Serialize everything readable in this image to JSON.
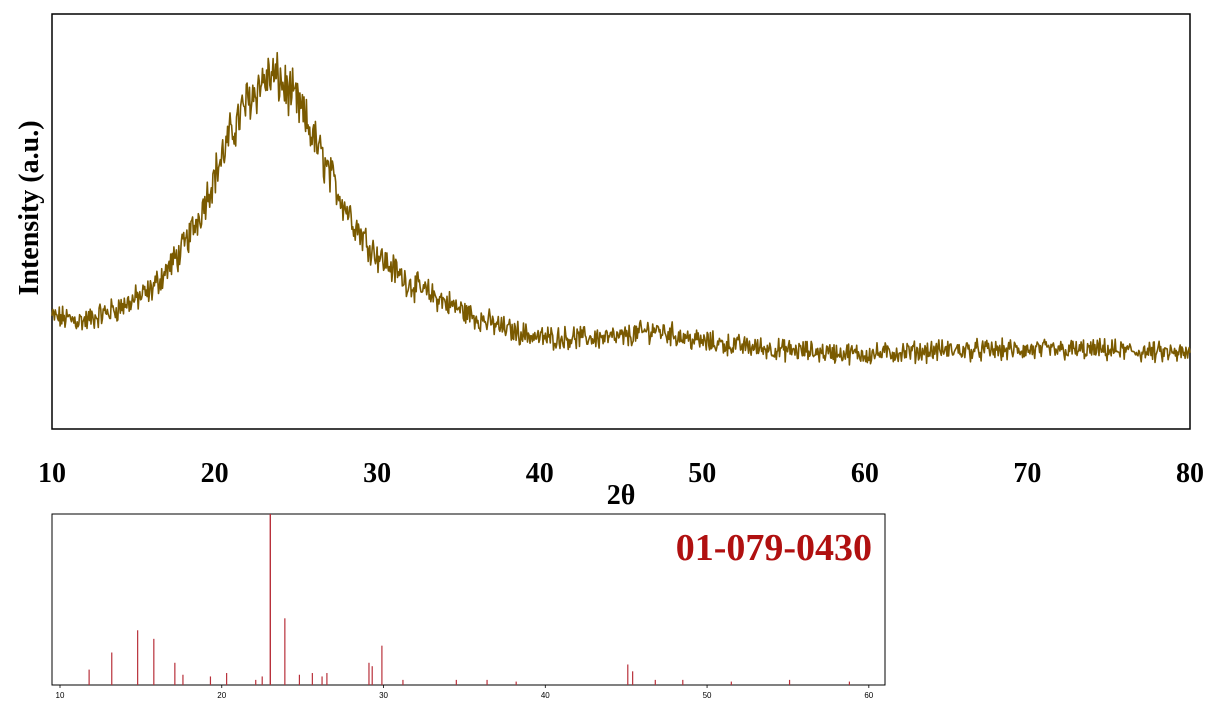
{
  "chart_data": [
    {
      "type": "line",
      "xlabel": "2θ",
      "ylabel": "Intensity (a.u.)",
      "xlim": [
        10,
        80
      ],
      "x_ticks": [
        "10",
        "20",
        "30",
        "40",
        "50",
        "60",
        "70",
        "80"
      ],
      "y_ticks_shown": false,
      "grid": false,
      "legend": "none",
      "series": [
        {
          "color": "#7a5a00",
          "x": [
            10,
            12,
            14,
            16,
            18,
            19,
            20,
            21,
            22,
            23,
            23.5,
            24,
            25,
            26,
            27,
            28,
            29,
            30,
            32,
            34,
            36,
            38,
            40,
            45,
            47,
            50,
            55,
            60,
            65,
            70,
            75,
            80
          ],
          "y": [
            0.27,
            0.26,
            0.29,
            0.33,
            0.43,
            0.51,
            0.61,
            0.71,
            0.79,
            0.84,
            0.85,
            0.84,
            0.79,
            0.71,
            0.62,
            0.54,
            0.47,
            0.42,
            0.35,
            0.31,
            0.27,
            0.24,
            0.22,
            0.22,
            0.24,
            0.21,
            0.19,
            0.18,
            0.19,
            0.19,
            0.19,
            0.18
          ]
        }
      ]
    },
    {
      "type": "bar",
      "label": "01-079-0430",
      "label_color": "#b01010",
      "xlim": [
        10,
        61
      ],
      "ylim": [
        0,
        100
      ],
      "x_ticks": [
        "10",
        "20",
        "30",
        "40",
        "50",
        "60"
      ],
      "bar_color": "#b8303a",
      "peaks": {
        "x": [
          11.8,
          13.2,
          14.8,
          15.8,
          17.1,
          17.6,
          19.3,
          20.3,
          22.1,
          22.5,
          23.0,
          23.9,
          24.8,
          25.6,
          26.2,
          26.5,
          29.1,
          29.3,
          29.9,
          31.2,
          34.5,
          36.4,
          38.2,
          45.1,
          45.4,
          46.8,
          48.5,
          51.5,
          55.1,
          58.8
        ],
        "y": [
          9,
          19,
          32,
          27,
          13,
          6,
          5,
          7,
          3,
          5,
          100,
          39,
          6,
          7,
          5,
          7,
          13,
          11,
          23,
          3,
          3,
          3,
          2,
          12,
          8,
          3,
          3,
          2,
          3,
          2
        ]
      }
    }
  ]
}
